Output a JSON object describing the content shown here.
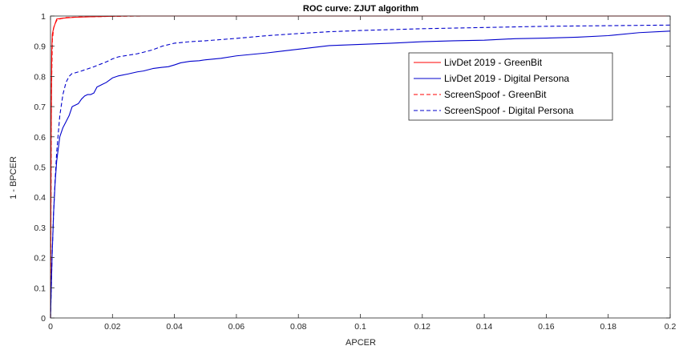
{
  "chart_data": {
    "type": "line",
    "title": "ROC curve: ZJUT algorithm",
    "xlabel": "APCER",
    "ylabel": "1 - BPCER",
    "xlim": [
      0,
      0.2
    ],
    "ylim": [
      0,
      1
    ],
    "x_ticks": [
      0,
      0.02,
      0.04,
      0.06,
      0.08,
      0.1,
      0.12,
      0.14,
      0.16,
      0.18,
      0.2
    ],
    "x_tick_labels": [
      "0",
      "0.02",
      "0.04",
      "0.06",
      "0.08",
      "0.1",
      "0.12",
      "0.14",
      "0.16",
      "0.18",
      "0.2"
    ],
    "y_ticks": [
      0,
      0.1,
      0.2,
      0.3,
      0.4,
      0.5,
      0.6,
      0.7,
      0.8,
      0.9,
      1
    ],
    "y_tick_labels": [
      "0",
      "0.1",
      "0.2",
      "0.3",
      "0.4",
      "0.5",
      "0.6",
      "0.7",
      "0.8",
      "0.9",
      "1"
    ],
    "grid": false,
    "legend_position": "top-right",
    "series": [
      {
        "name": "LivDet 2019 - GreenBit",
        "color": "#ff0000",
        "style": "solid",
        "x": [
          0,
          0.0002,
          0.0004,
          0.0006,
          0.001,
          0.0015,
          0.002,
          0.004,
          0.008,
          0.015,
          0.025,
          0.05,
          0.2
        ],
        "y": [
          0,
          0.6,
          0.88,
          0.94,
          0.96,
          0.975,
          0.99,
          0.993,
          0.996,
          0.998,
          1.0,
          1.0,
          1.0
        ]
      },
      {
        "name": "LivDet 2019 - Digital Persona",
        "color": "#0000cc",
        "style": "solid",
        "x": [
          0,
          0.0005,
          0.001,
          0.0015,
          0.002,
          0.003,
          0.004,
          0.005,
          0.006,
          0.007,
          0.008,
          0.009,
          0.01,
          0.011,
          0.012,
          0.013,
          0.014,
          0.015,
          0.016,
          0.018,
          0.02,
          0.022,
          0.025,
          0.028,
          0.03,
          0.033,
          0.036,
          0.038,
          0.04,
          0.042,
          0.045,
          0.048,
          0.05,
          0.055,
          0.06,
          0.065,
          0.07,
          0.075,
          0.08,
          0.085,
          0.09,
          0.095,
          0.1,
          0.11,
          0.12,
          0.13,
          0.14,
          0.15,
          0.16,
          0.17,
          0.18,
          0.19,
          0.2
        ],
        "y": [
          0,
          0.2,
          0.35,
          0.45,
          0.52,
          0.6,
          0.63,
          0.65,
          0.67,
          0.7,
          0.705,
          0.71,
          0.725,
          0.735,
          0.74,
          0.74,
          0.745,
          0.765,
          0.77,
          0.78,
          0.795,
          0.802,
          0.808,
          0.815,
          0.818,
          0.826,
          0.83,
          0.832,
          0.838,
          0.845,
          0.85,
          0.852,
          0.855,
          0.86,
          0.868,
          0.873,
          0.878,
          0.884,
          0.89,
          0.896,
          0.902,
          0.904,
          0.906,
          0.91,
          0.915,
          0.918,
          0.92,
          0.925,
          0.927,
          0.93,
          0.935,
          0.945,
          0.95
        ]
      },
      {
        "name": "ScreenSpoof - GreenBit",
        "color": "#ff0000",
        "style": "dashed",
        "x": [
          0,
          0.0003,
          0.0006,
          0.001,
          0.0015,
          0.002,
          0.003,
          0.005,
          0.01,
          0.02,
          0.03,
          0.2
        ],
        "y": [
          0,
          0.75,
          0.92,
          0.96,
          0.975,
          0.985,
          0.99,
          0.995,
          0.997,
          0.999,
          1.0,
          1.0
        ]
      },
      {
        "name": "ScreenSpoof - Digital Persona",
        "color": "#0000cc",
        "style": "dashed",
        "x": [
          0,
          0.0005,
          0.001,
          0.0015,
          0.002,
          0.003,
          0.004,
          0.005,
          0.006,
          0.007,
          0.008,
          0.01,
          0.012,
          0.014,
          0.016,
          0.018,
          0.02,
          0.022,
          0.025,
          0.028,
          0.03,
          0.033,
          0.036,
          0.04,
          0.045,
          0.05,
          0.06,
          0.07,
          0.08,
          0.09,
          0.1,
          0.11,
          0.12,
          0.13,
          0.14,
          0.15,
          0.16,
          0.17,
          0.18,
          0.19,
          0.2
        ],
        "y": [
          0,
          0.2,
          0.35,
          0.46,
          0.55,
          0.67,
          0.74,
          0.78,
          0.8,
          0.81,
          0.812,
          0.818,
          0.825,
          0.832,
          0.84,
          0.848,
          0.858,
          0.865,
          0.87,
          0.875,
          0.88,
          0.888,
          0.9,
          0.91,
          0.915,
          0.918,
          0.926,
          0.935,
          0.942,
          0.948,
          0.952,
          0.955,
          0.958,
          0.96,
          0.962,
          0.964,
          0.966,
          0.967,
          0.968,
          0.969,
          0.97
        ]
      }
    ]
  }
}
